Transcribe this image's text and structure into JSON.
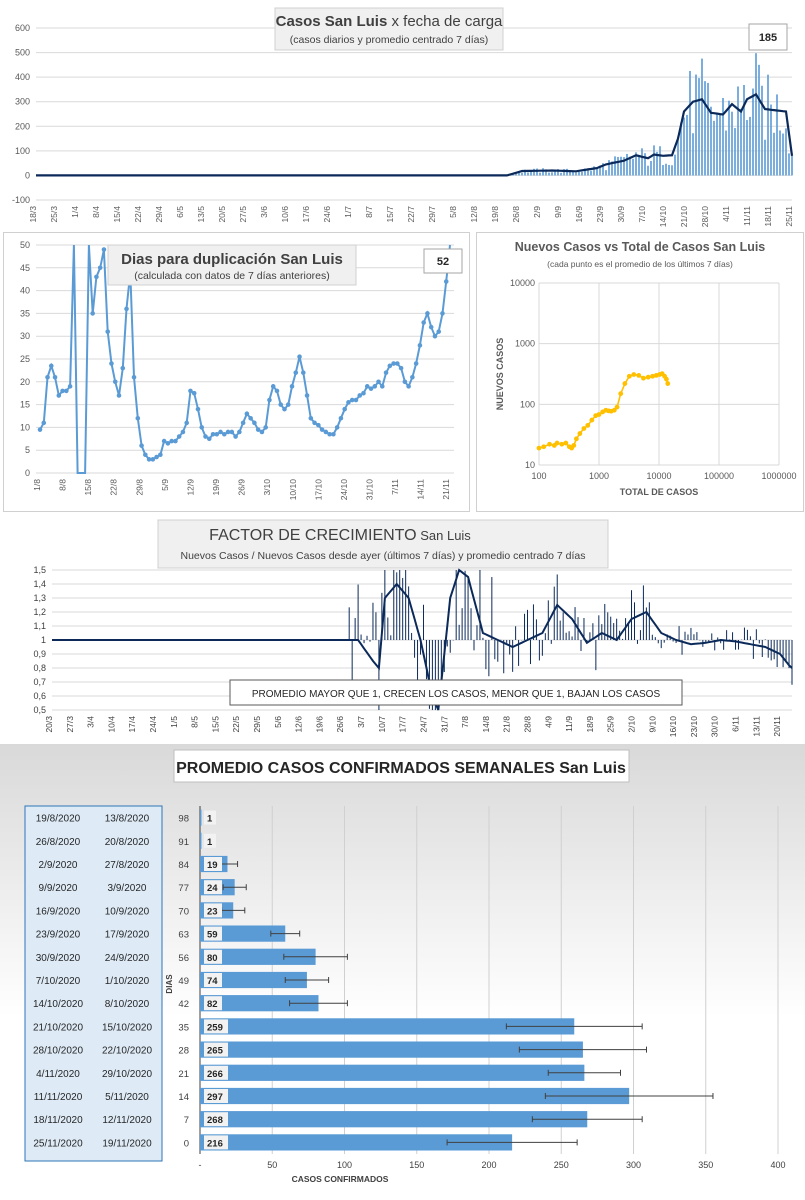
{
  "chart_data": [
    {
      "id": "daily",
      "type": "bar",
      "title_bold": "Casos  San Luis",
      "title_rest": " x fecha de carga",
      "subtitle": "(casos diarios y promedio  centrado 7 días)",
      "badge": "185",
      "y_ticks": [
        "600",
        "500",
        "400",
        "300",
        "200",
        "100",
        "0",
        "-100"
      ],
      "ylim": [
        -100,
        600
      ],
      "x_ticks": [
        "18/3",
        "25/3",
        "1/4",
        "8/4",
        "15/4",
        "22/4",
        "29/4",
        "6/5",
        "13/5",
        "20/5",
        "27/5",
        "3/6",
        "10/6",
        "17/6",
        "24/6",
        "1/7",
        "8/7",
        "15/7",
        "22/7",
        "29/7",
        "5/8",
        "12/8",
        "19/8",
        "26/8",
        "2/9",
        "9/9",
        "16/9",
        "23/9",
        "30/9",
        "7/10",
        "14/10",
        "21/10",
        "28/10",
        "4/11",
        "11/11",
        "18/11",
        "25/11"
      ],
      "bar_color": "#5B9BD5",
      "line_color": "#0B2A5A",
      "avg_anchor_days": [
        0,
        157,
        162,
        172,
        180,
        187,
        190,
        196,
        200,
        204,
        206,
        209,
        212,
        214,
        216,
        219,
        222,
        225,
        229,
        232,
        235,
        237,
        240,
        243,
        250,
        252
      ],
      "avg_anchor_values": [
        0,
        0,
        18,
        20,
        17,
        30,
        45,
        60,
        82,
        70,
        85,
        80,
        82,
        150,
        260,
        300,
        310,
        255,
        248,
        290,
        260,
        310,
        330,
        270,
        260,
        80
      ]
    },
    {
      "id": "doubling",
      "type": "line",
      "title": "Dias para duplicación San Luis",
      "subtitle": "(calculada con datos de 7 días anteriores)",
      "badge": "52",
      "y_ticks": [
        "50",
        "45",
        "40",
        "35",
        "30",
        "25",
        "20",
        "15",
        "10",
        "5",
        "0"
      ],
      "ylim": [
        0,
        50
      ],
      "x_ticks": [
        "1/8",
        "8/8",
        "15/8",
        "22/8",
        "29/8",
        "5/9",
        "12/9",
        "19/9",
        "26/9",
        "3/10",
        "10/10",
        "17/10",
        "24/10",
        "31/10",
        "7/11",
        "14/11",
        "21/11"
      ],
      "line_color": "#5B9BD5",
      "values": [
        9.5,
        11,
        21,
        23.5,
        21,
        17,
        18,
        18,
        19,
        50,
        0,
        0,
        0,
        50,
        35,
        43,
        45,
        49,
        31,
        24,
        20,
        17,
        23,
        36,
        44,
        21,
        12,
        6,
        4,
        3,
        3,
        3.5,
        4,
        7,
        6.5,
        7,
        7,
        8,
        9,
        11,
        18,
        17.5,
        14,
        10,
        8,
        7.5,
        8.5,
        8.5,
        9,
        8.5,
        9,
        9,
        8,
        9,
        11,
        13,
        12,
        11,
        9.5,
        9,
        10,
        16,
        19,
        18,
        15,
        14,
        15,
        19,
        22,
        25.5,
        22,
        17,
        12,
        11,
        10.5,
        9.5,
        9,
        8.5,
        8.5,
        10,
        12,
        14,
        15.5,
        16,
        16,
        17,
        17.5,
        19,
        18.5,
        19,
        20,
        19,
        22,
        23.5,
        24,
        24,
        23,
        20,
        19,
        21,
        24,
        28,
        33,
        35,
        32,
        30,
        31,
        35,
        42,
        50
      ]
    },
    {
      "id": "log",
      "type": "scatter",
      "title": "Nuevos Casos vs Total de Casos San Luis",
      "subtitle": "(cada punto es el promedio de los últimos 7 días)",
      "xlabel": "TOTAL DE CASOS",
      "ylabel": "NUEVOS CASOS",
      "x_scale": "log",
      "y_scale": "log",
      "xlim": [
        100,
        1000000
      ],
      "ylim": [
        10,
        10000
      ],
      "x_ticks": [
        "100",
        "1000",
        "10000",
        "100000",
        "1000000"
      ],
      "y_ticks": [
        "10000",
        "1000",
        "100",
        "10"
      ],
      "point_color": "#FFC000",
      "total_cases": [
        100,
        120,
        150,
        180,
        200,
        240,
        280,
        320,
        350,
        380,
        420,
        480,
        560,
        650,
        760,
        880,
        1000,
        1150,
        1300,
        1450,
        1600,
        1800,
        2000,
        2300,
        2700,
        3200,
        3800,
        4600,
        5500,
        6600,
        7800,
        9000,
        10200,
        11300,
        12400,
        13300,
        14000
      ],
      "new_cases": [
        19,
        20,
        22,
        21,
        23,
        22,
        23,
        20,
        19,
        21,
        27,
        33,
        40,
        45,
        55,
        65,
        68,
        75,
        80,
        78,
        77,
        80,
        90,
        150,
        220,
        290,
        310,
        300,
        270,
        280,
        290,
        300,
        310,
        320,
        290,
        260,
        220
      ]
    },
    {
      "id": "growth",
      "type": "line",
      "title_rest": "FACTOR DE CRECIMIENTO",
      "title_small": " San Luis",
      "subtitle": "Nuevos Casos  / Nuevos Casos desde ayer (últimos 7 días) y promedio  centrado 7 días",
      "annotation": "PROMEDIO MAYOR QUE 1, CRECEN LOS CASOS, MENOR QUE 1, BAJAN LOS CASOS",
      "y_ticks": [
        "1,5",
        "1,4",
        "1,3",
        "1,2",
        "1,1",
        "1",
        "0,9",
        "0,8",
        "0,7",
        "0,6",
        "0,5"
      ],
      "ylim": [
        0.5,
        1.5
      ],
      "x_ticks": [
        "20/3",
        "27/3",
        "3/4",
        "10/4",
        "17/4",
        "24/4",
        "1/5",
        "8/5",
        "15/5",
        "22/5",
        "29/5",
        "5/6",
        "12/6",
        "19/6",
        "26/6",
        "3/7",
        "10/7",
        "17/7",
        "24/7",
        "31/7",
        "7/8",
        "14/8",
        "21/8",
        "28/8",
        "4/9",
        "11/9",
        "18/9",
        "25/9",
        "2/10",
        "9/10",
        "16/10",
        "23/10",
        "30/10",
        "6/11",
        "13/11",
        "20/11"
      ],
      "line_color": "#0B2A5A",
      "avg_anchor_days": [
        0,
        98,
        103,
        108,
        110,
        112,
        116,
        120,
        124,
        126,
        128,
        130,
        132,
        134,
        137,
        140,
        145,
        150,
        155,
        160,
        165,
        170,
        175,
        180,
        185,
        190,
        195,
        200,
        205,
        210,
        215,
        220,
        225,
        230,
        235,
        240,
        245,
        248,
        249
      ],
      "avg_anchor_values": [
        1,
        1,
        1,
        0.85,
        0.8,
        1.3,
        1.4,
        1.3,
        1.0,
        0.8,
        0.6,
        0.5,
        0.9,
        1.3,
        1.5,
        1.45,
        1.05,
        1.0,
        0.95,
        1.0,
        1.05,
        1.25,
        1.15,
        0.98,
        1.05,
        1.0,
        1.15,
        1.2,
        1.05,
        1.0,
        0.97,
        0.98,
        1.0,
        0.99,
        0.97,
        0.95,
        0.9,
        0.82,
        0.8
      ]
    },
    {
      "id": "weekly",
      "type": "bar",
      "title": "PROMEDIO CASOS CONFIRMADOS SEMANALES San Luis",
      "xlabel": "CASOS CONFIRMADOS",
      "ylabel": "DIAS",
      "x_ticks": [
        "-",
        "50",
        "100",
        "150",
        "200",
        "250",
        "300",
        "350",
        "400"
      ],
      "xlim": [
        0,
        400
      ],
      "bar_color": "#5B9BD5",
      "weeks": [
        {
          "end": "19/8/2020",
          "start": "13/8/2020",
          "days": "98",
          "value": 1,
          "label": "1",
          "err": 0
        },
        {
          "end": "26/8/2020",
          "start": "20/8/2020",
          "days": "91",
          "value": 1,
          "label": "1",
          "err": 0
        },
        {
          "end": "2/9/2020",
          "start": "27/8/2020",
          "days": "84",
          "value": 19,
          "label": "19",
          "err": 7
        },
        {
          "end": "9/9/2020",
          "start": "3/9/2020",
          "days": "77",
          "value": 24,
          "label": "24",
          "err": 8
        },
        {
          "end": "16/9/2020",
          "start": "10/9/2020",
          "days": "70",
          "value": 23,
          "label": "23",
          "err": 8
        },
        {
          "end": "23/9/2020",
          "start": "17/9/2020",
          "days": "63",
          "value": 59,
          "label": "59",
          "err": 10
        },
        {
          "end": "30/9/2020",
          "start": "24/9/2020",
          "days": "56",
          "value": 80,
          "label": "80",
          "err": 22
        },
        {
          "end": "7/10/2020",
          "start": "1/10/2020",
          "days": "49",
          "value": 74,
          "label": "74",
          "err": 15
        },
        {
          "end": "14/10/2020",
          "start": "8/10/2020",
          "days": "42",
          "value": 82,
          "label": "82",
          "err": 20
        },
        {
          "end": "21/10/2020",
          "start": "15/10/2020",
          "days": "35",
          "value": 259,
          "label": "259",
          "err": 47
        },
        {
          "end": "28/10/2020",
          "start": "22/10/2020",
          "days": "28",
          "value": 265,
          "label": "265",
          "err": 44
        },
        {
          "end": "4/11/2020",
          "start": "29/10/2020",
          "days": "21",
          "value": 266,
          "label": "266",
          "err": 25
        },
        {
          "end": "11/11/2020",
          "start": "5/11/2020",
          "days": "14",
          "value": 297,
          "label": "297",
          "err": 58
        },
        {
          "end": "18/11/2020",
          "start": "12/11/2020",
          "days": "7",
          "value": 268,
          "label": "268",
          "err": 38
        },
        {
          "end": "25/11/2020",
          "start": "19/11/2020",
          "days": "0",
          "value": 216,
          "label": "216",
          "err": 45
        }
      ]
    }
  ]
}
